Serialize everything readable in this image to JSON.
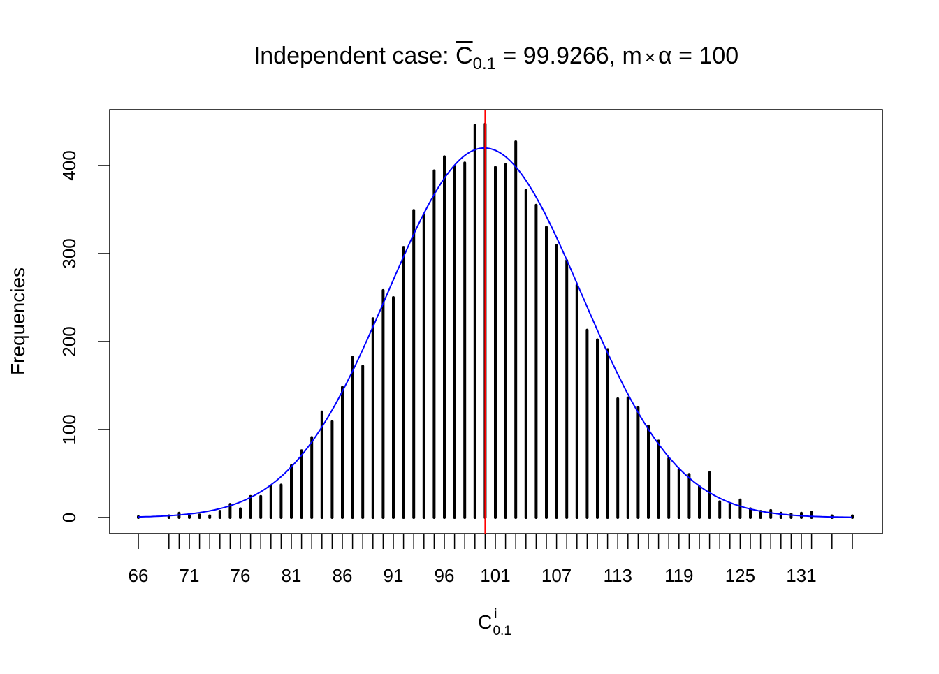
{
  "chart_data": {
    "type": "bar",
    "title": {
      "prefix": "Independent case: ",
      "symbol": "C",
      "symbol_sub": "0.1",
      "middle": " = 99.9266, m",
      "times": "×",
      "alpha": "α",
      "suffix": " = 100"
    },
    "xlabel": {
      "symbol": "C",
      "sup": "i",
      "sub": "0.1"
    },
    "ylabel": "Frequencies",
    "xlim": [
      66,
      136
    ],
    "ylim": [
      0,
      450
    ],
    "yticks": [
      0,
      100,
      200,
      300,
      400
    ],
    "xtick_labels": [
      "66",
      "71",
      "76",
      "81",
      "86",
      "91",
      "96",
      "101",
      "107",
      "113",
      "119",
      "125",
      "131"
    ],
    "x": [
      66,
      69,
      70,
      71,
      72,
      73,
      74,
      75,
      76,
      77,
      78,
      79,
      80,
      81,
      82,
      83,
      84,
      85,
      86,
      87,
      88,
      89,
      90,
      91,
      92,
      93,
      94,
      95,
      96,
      97,
      98,
      99,
      100,
      101,
      102,
      103,
      104,
      105,
      106,
      107,
      108,
      109,
      110,
      111,
      112,
      113,
      114,
      115,
      116,
      117,
      118,
      119,
      120,
      121,
      122,
      123,
      124,
      125,
      126,
      127,
      128,
      129,
      130,
      131,
      132,
      134,
      136
    ],
    "values": [
      1,
      2,
      5,
      2,
      3,
      2,
      7,
      15,
      10,
      24,
      24,
      36,
      37,
      59,
      76,
      91,
      120,
      109,
      148,
      182,
      172,
      226,
      258,
      250,
      307,
      349,
      343,
      394,
      410,
      399,
      403,
      446,
      447,
      398,
      401,
      427,
      372,
      355,
      330,
      309,
      292,
      264,
      213,
      202,
      191,
      135,
      136,
      125,
      104,
      87,
      67,
      55,
      49,
      35,
      51,
      18,
      16,
      20,
      10,
      7,
      8,
      5,
      4,
      5,
      6,
      2,
      2
    ],
    "normal_curve": {
      "mean": 99.9266,
      "sd": 9.5,
      "total": 10000,
      "color": "#0000ff"
    },
    "reference_line": {
      "x": 100,
      "color": "#ff0000"
    },
    "grid": false
  }
}
